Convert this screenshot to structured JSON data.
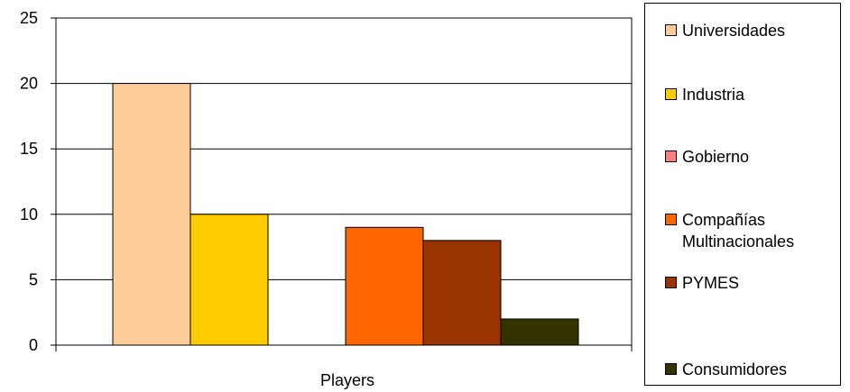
{
  "chart_data": {
    "type": "bar",
    "categories": [
      "Players"
    ],
    "xlabel": "Players",
    "ylabel": "",
    "title": "",
    "ylim": [
      0,
      25
    ],
    "yticks": [
      0,
      5,
      10,
      15,
      20,
      25
    ],
    "grid": true,
    "legend_position": "right",
    "series": [
      {
        "name": "Universidades",
        "values": [
          20
        ],
        "color": "#FFCC99"
      },
      {
        "name": "Industria",
        "values": [
          10
        ],
        "color": "#FFCC00"
      },
      {
        "name": "Gobierno",
        "values": [
          0
        ],
        "color": "#FF8080"
      },
      {
        "name": "Compañías Multinacionales",
        "values": [
          9
        ],
        "color": "#FF6600"
      },
      {
        "name": "PYMES",
        "values": [
          8
        ],
        "color": "#993300"
      },
      {
        "name": "Consumidores",
        "values": [
          2
        ],
        "color": "#333300"
      }
    ]
  },
  "legend": {
    "items": [
      {
        "label": "Universidades"
      },
      {
        "label": "Industria"
      },
      {
        "label": "Gobierno"
      },
      {
        "label": "Compañías\nMultinacionales"
      },
      {
        "label": "PYMES"
      },
      {
        "label": "Consumidores"
      }
    ]
  }
}
